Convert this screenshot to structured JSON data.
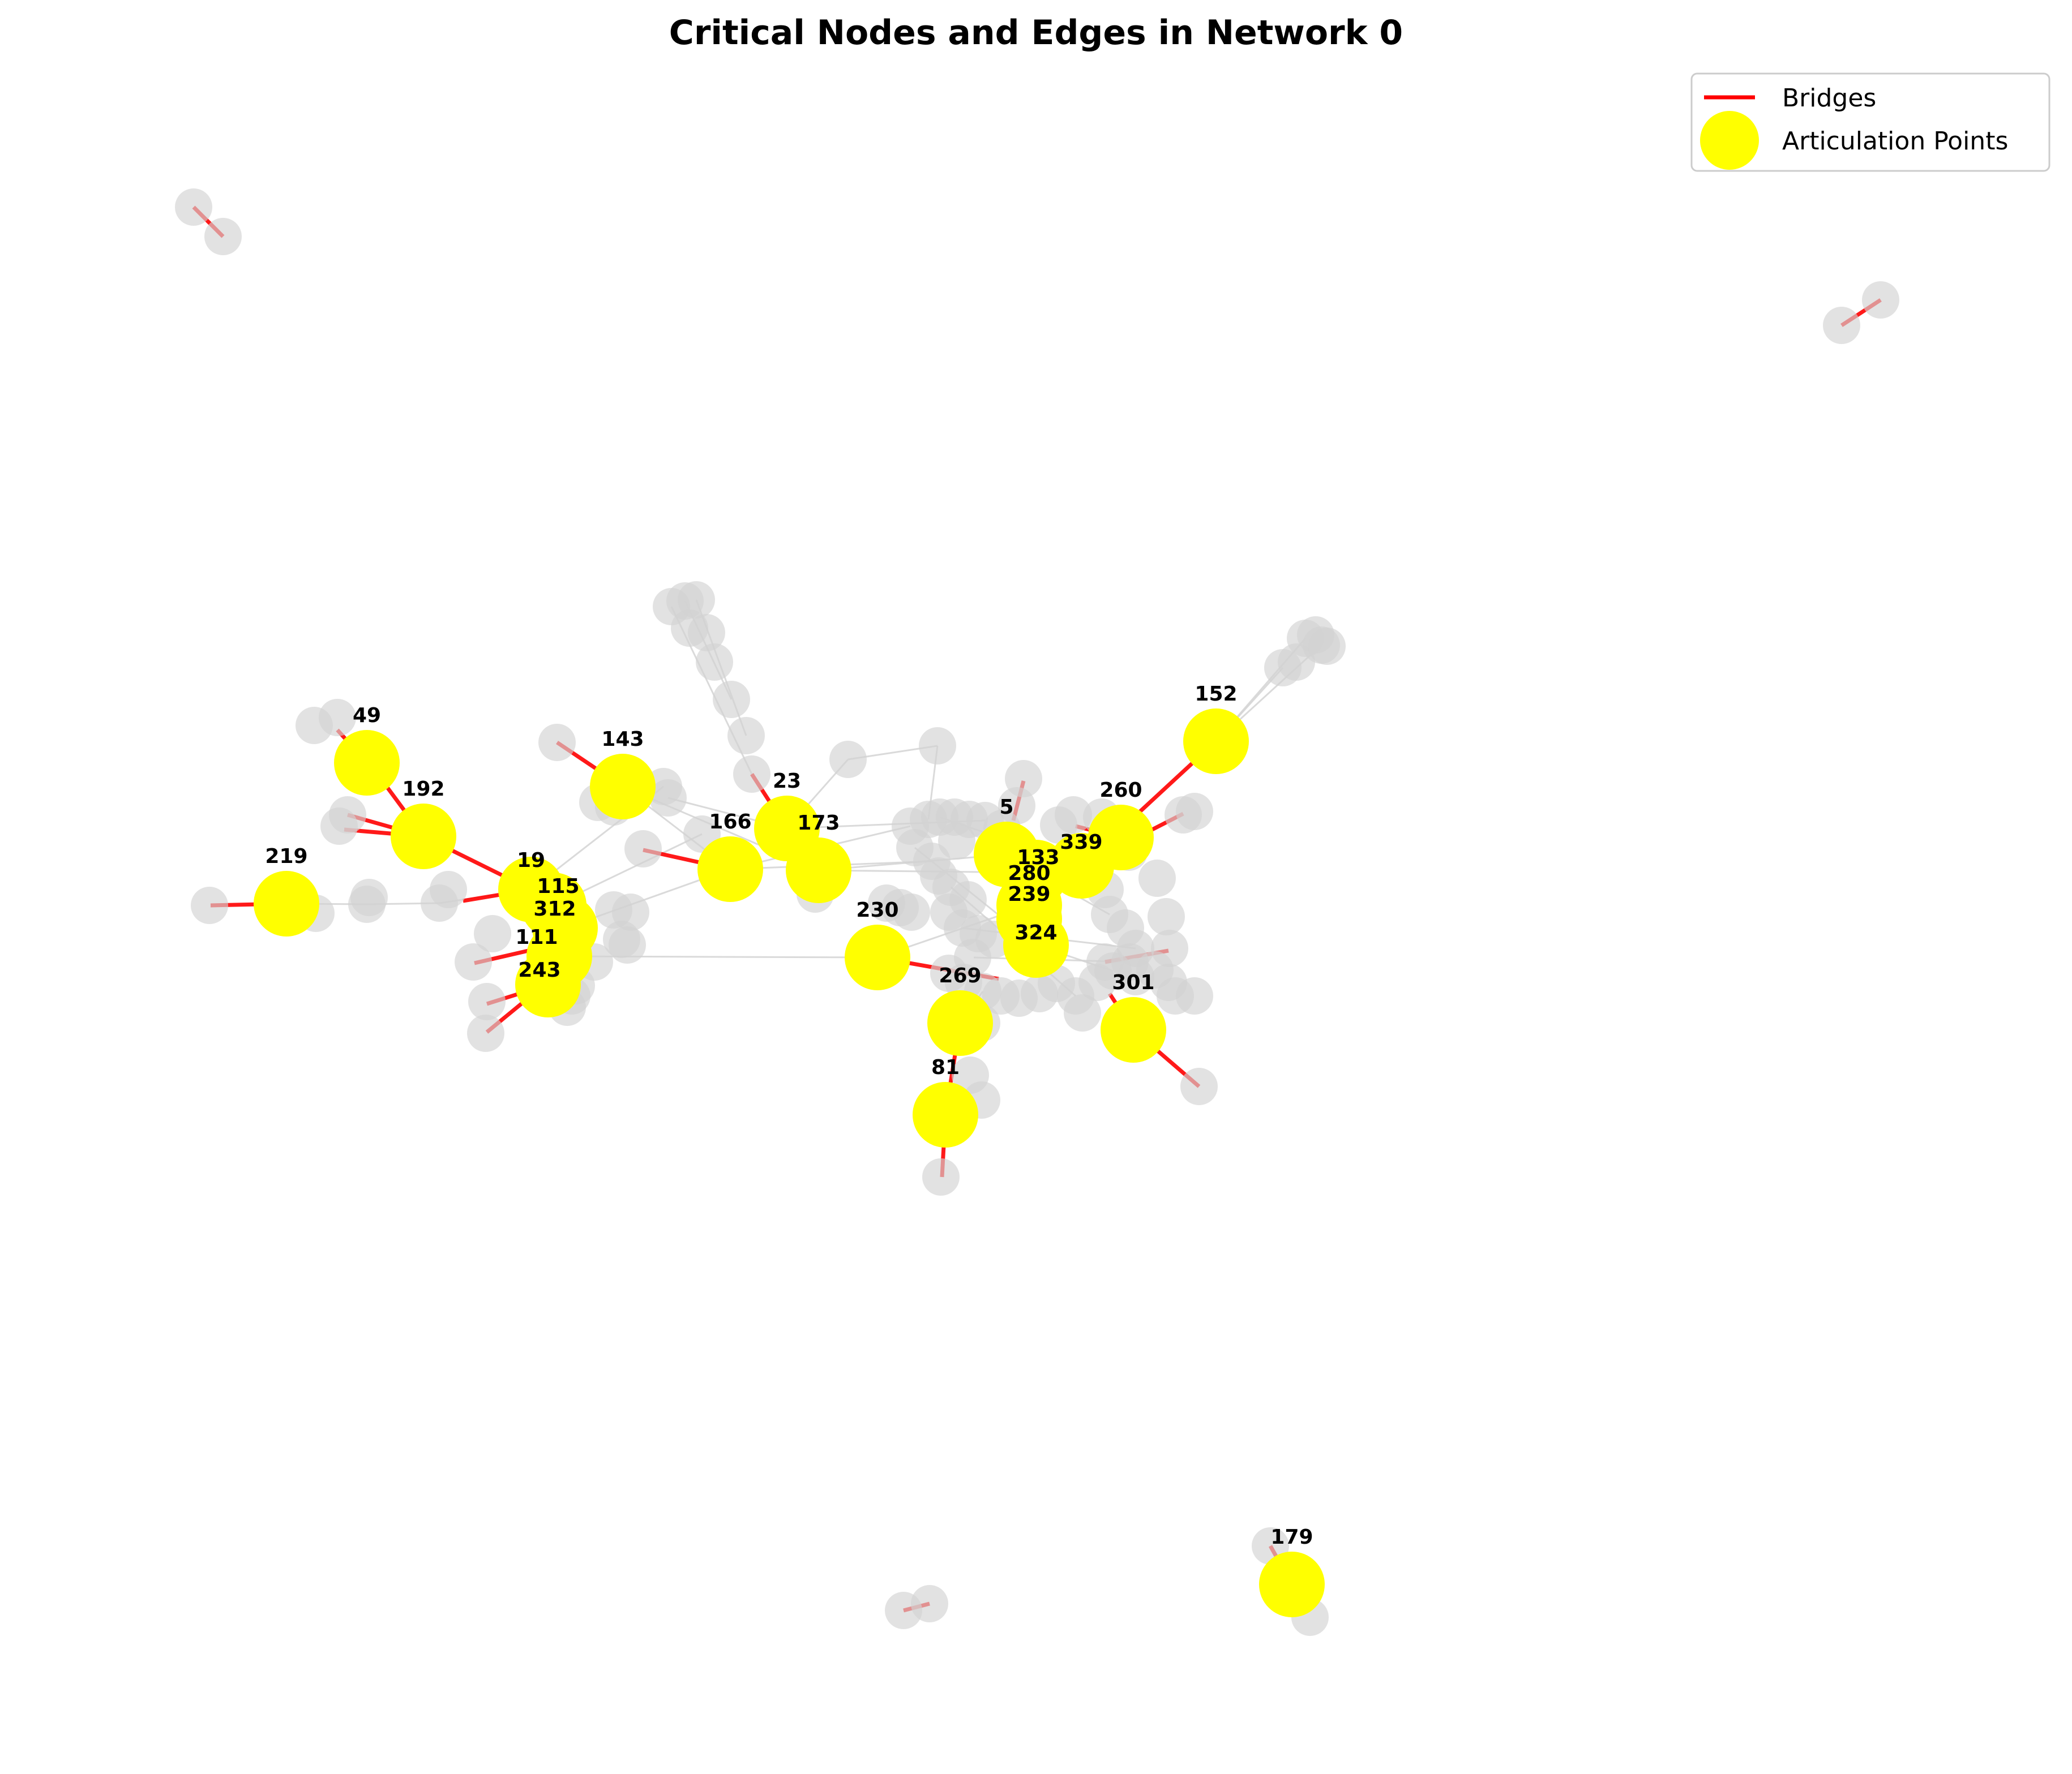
{
  "title": "Critical Nodes and Edges in Network 0",
  "legend": {
    "placement": "upper-right",
    "bridges_label": "Bridges",
    "articulation_label": "Articulation Points",
    "bridge_color": "#ff0000",
    "articulation_color": "#ffff00"
  },
  "colors": {
    "regular_node": "#d3d3d3",
    "regular_edge": "#d3d3d3",
    "bridge_edge": "#ff0000",
    "articulation_node": "#ffff00"
  },
  "articulation_points": [
    {
      "id": "49",
      "label": "49"
    },
    {
      "id": "192",
      "label": "192"
    },
    {
      "id": "219",
      "label": "219"
    },
    {
      "id": "143",
      "label": "143"
    },
    {
      "id": "19",
      "label": "19"
    },
    {
      "id": "115",
      "label": "115"
    },
    {
      "id": "312",
      "label": "312"
    },
    {
      "id": "111",
      "label": "111"
    },
    {
      "id": "243",
      "label": "243"
    },
    {
      "id": "23",
      "label": "23"
    },
    {
      "id": "166",
      "label": "166"
    },
    {
      "id": "173",
      "label": "173"
    },
    {
      "id": "5",
      "label": "5"
    },
    {
      "id": "133",
      "label": "133"
    },
    {
      "id": "260",
      "label": "260"
    },
    {
      "id": "339",
      "label": "339"
    },
    {
      "id": "152",
      "label": "152"
    },
    {
      "id": "280",
      "label": "280"
    },
    {
      "id": "239",
      "label": "239"
    },
    {
      "id": "324",
      "label": "324"
    },
    {
      "id": "230",
      "label": "230"
    },
    {
      "id": "269",
      "label": "269"
    },
    {
      "id": "81",
      "label": "81"
    },
    {
      "id": "301",
      "label": "301"
    },
    {
      "id": "179",
      "label": "179"
    }
  ]
}
